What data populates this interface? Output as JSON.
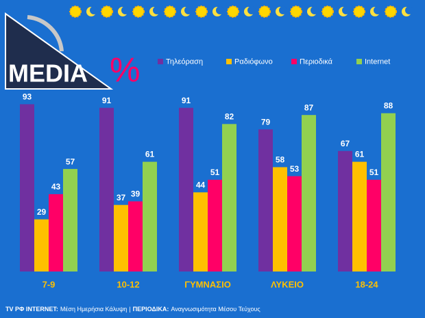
{
  "chart_data": {
    "type": "bar",
    "title": "MEDIA",
    "subtitle": "%",
    "categories": [
      "7-9",
      "10-12",
      "ΓΥΜΝΑΣΙΟ",
      "ΛΥΚΕΙΟ",
      "18-24"
    ],
    "series": [
      {
        "name": "Τηλεόραση",
        "color": "#7030a0",
        "values": [
          93,
          91,
          91,
          79,
          67
        ]
      },
      {
        "name": "Ραδιόφωνο",
        "color": "#ffc000",
        "values": [
          29,
          37,
          44,
          58,
          61
        ]
      },
      {
        "name": "Περιοδικά",
        "color": "#ff0066",
        "values": [
          43,
          39,
          51,
          53,
          51
        ]
      },
      {
        "name": "Internet",
        "color": "#92d050",
        "values": [
          57,
          61,
          82,
          87,
          88
        ]
      }
    ],
    "footer": [
      {
        "text": "TV ΡΦ INTERNET:",
        "bold": true
      },
      {
        "text": "Μέση Ημερήσια Κάλυψη",
        "bold": false
      },
      {
        "text": "|",
        "bold": false
      },
      {
        "text": "ΠΕΡΙΟΔΙΚΑ:",
        "bold": true
      },
      {
        "text": "Αναγνωσιμότητα Μέσου Τεύχους",
        "bold": false
      }
    ]
  }
}
